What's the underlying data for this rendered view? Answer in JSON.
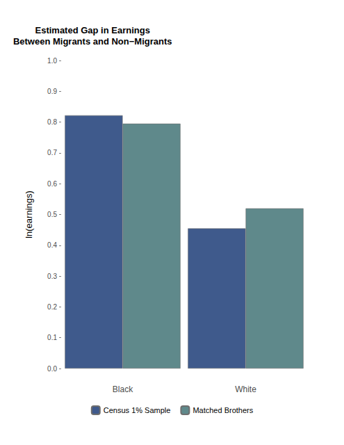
{
  "chart_data": {
    "type": "bar",
    "title": "Estimated Gap in Earnings\nBetween Migrants and Non−Migrants",
    "y_label": "ln(earnings)",
    "categories": [
      "Black",
      "White"
    ],
    "series": [
      {
        "name": "Census 1% Sample",
        "color": "#3f5a8c",
        "values": [
          0.822,
          0.455
        ]
      },
      {
        "name": "Matched Brothers",
        "color": "#5f898b",
        "values": [
          0.795,
          0.52
        ]
      }
    ],
    "ylim": [
      0,
      1
    ],
    "yticks": [
      {
        "value": 0,
        "label": "0.0"
      },
      0.1,
      0.2,
      0.3,
      0.4,
      0.5,
      0.6,
      0.7,
      0.8,
      0.9,
      {
        "value": 1,
        "label": "1.0"
      }
    ],
    "grid": false,
    "legend": "bottom"
  }
}
